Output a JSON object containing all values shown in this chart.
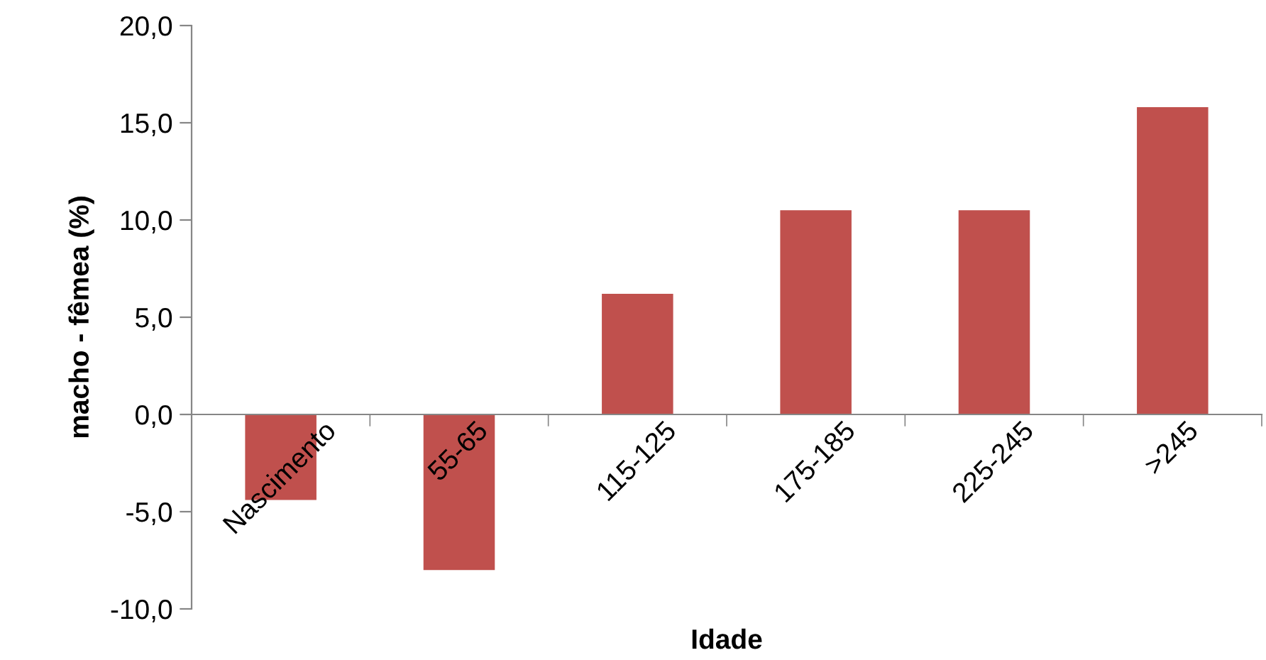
{
  "chart_data": {
    "type": "bar",
    "xlabel": "Idade",
    "ylabel": "macho - fêmea (%)",
    "categories": [
      "Nascimento",
      "55-65",
      "115-125",
      "175-185",
      "225-245",
      ">245"
    ],
    "values": [
      -4.4,
      -8.0,
      6.2,
      10.5,
      10.5,
      15.8
    ],
    "color": "#c0504d",
    "ylim": [
      -10,
      20
    ],
    "yticks": [
      {
        "value": -10,
        "label": "-10,0"
      },
      {
        "value": -5,
        "label": "-5,0"
      },
      {
        "value": 0,
        "label": "0,0"
      },
      {
        "value": 5,
        "label": "5,0"
      },
      {
        "value": 10,
        "label": "10,0"
      },
      {
        "value": 15,
        "label": "15,0"
      },
      {
        "value": 20,
        "label": "20,0"
      }
    ],
    "grid": false,
    "legend": false
  }
}
